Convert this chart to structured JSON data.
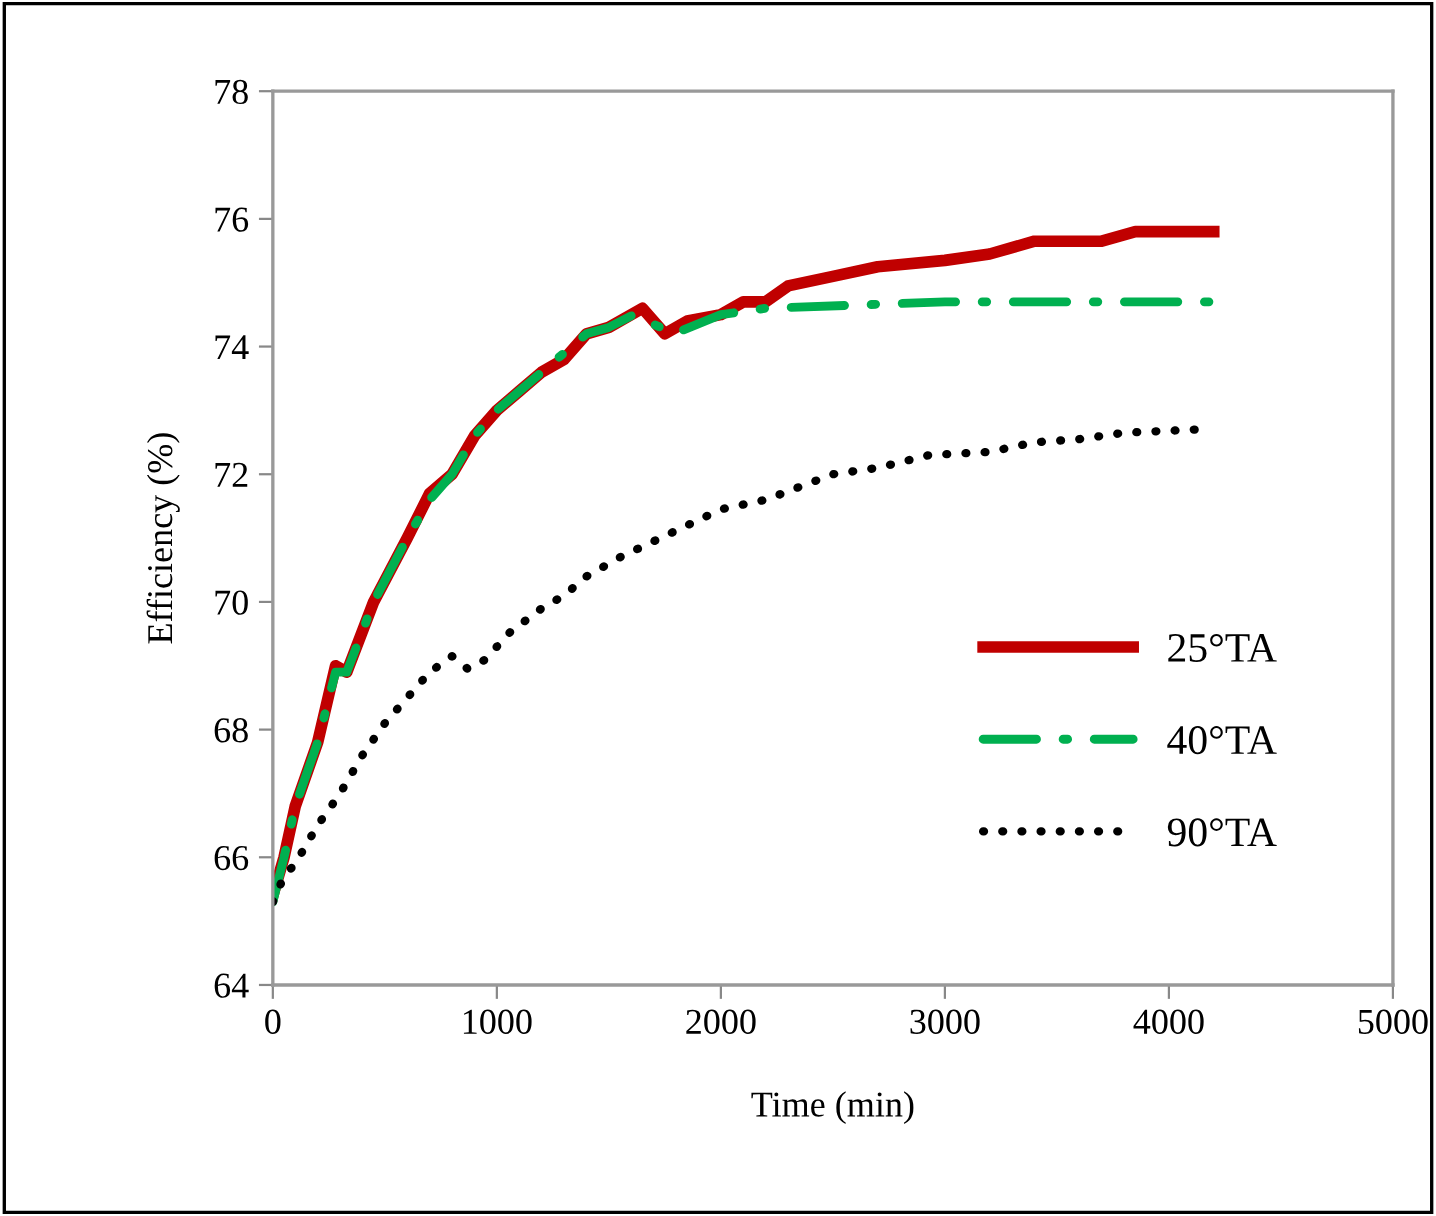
{
  "chart_data": {
    "type": "line",
    "xlabel": "Time (min)",
    "ylabel": "Efficiency (%)",
    "xlim": [
      0,
      5000
    ],
    "xticks": [
      0,
      1000,
      2000,
      3000,
      4000,
      5000
    ],
    "ylim": [
      64,
      78
    ],
    "yticks": [
      64,
      66,
      68,
      70,
      72,
      74,
      76,
      78
    ],
    "grid": false,
    "legend": "right",
    "marker": "none",
    "series": [
      {
        "name": "25°TA",
        "color": "#c00000",
        "line_style": "solid",
        "x": [
          0,
          50,
          100,
          200,
          280,
          330,
          450,
          600,
          700,
          800,
          900,
          1000,
          1100,
          1200,
          1300,
          1400,
          1500,
          1650,
          1750,
          1850,
          2000,
          2100,
          2200,
          2300,
          2500,
          2700,
          3000,
          3200,
          3400,
          3700,
          3850,
          4200
        ],
        "values": [
          65.4,
          66,
          66.8,
          67.8,
          69,
          68.9,
          70,
          71,
          71.7,
          72,
          72.6,
          73,
          73.3,
          73.6,
          73.8,
          74.2,
          74.3,
          74.6,
          74.2,
          74.4,
          74.5,
          74.7,
          74.7,
          74.95,
          75.1,
          75.25,
          75.35,
          75.45,
          75.65,
          75.65,
          75.8,
          75.8
        ]
      },
      {
        "name": "40°TA",
        "color": "#00b050",
        "line_style": "dashdot",
        "x": [
          0,
          50,
          100,
          200,
          280,
          330,
          450,
          600,
          700,
          800,
          900,
          1000,
          1100,
          1200,
          1300,
          1400,
          1500,
          1610,
          1790,
          2000,
          2200,
          3000,
          4200
        ],
        "values": [
          65.3,
          66,
          66.8,
          67.8,
          68.9,
          68.9,
          70,
          71,
          71.6,
          72,
          72.6,
          73,
          73.3,
          73.6,
          73.9,
          74.2,
          74.3,
          74.5,
          74.2,
          74.5,
          74.6,
          74.7,
          74.7
        ]
      },
      {
        "name": "90°TA",
        "color": "#000000",
        "line_style": "dotted",
        "x": [
          0,
          50,
          100,
          200,
          300,
          400,
          500,
          600,
          700,
          800,
          870,
          950,
          1050,
          1200,
          1300,
          1400,
          1550,
          1700,
          1850,
          2000,
          2200,
          2500,
          2700,
          2930,
          3200,
          3400,
          3600,
          3800,
          4120
        ],
        "values": [
          65.3,
          65.7,
          65.9,
          66.5,
          67,
          67.6,
          68.1,
          68.5,
          68.9,
          69.15,
          68.95,
          69.1,
          69.5,
          69.9,
          70.1,
          70.4,
          70.7,
          70.95,
          71.2,
          71.45,
          71.6,
          72.0,
          72.1,
          72.3,
          72.35,
          72.5,
          72.55,
          72.65,
          72.7
        ]
      }
    ]
  }
}
